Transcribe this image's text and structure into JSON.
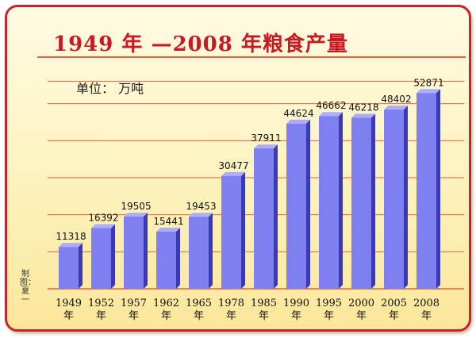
{
  "title": "1949 年 —2008 年粮食产量",
  "unit_label": "单位：  万吨",
  "credit": "制图：夏一",
  "colors": {
    "frame_border": "#c9232b",
    "title": "#c81a24",
    "gridline": "#e0653a",
    "bar_front": "#7f7ff2",
    "bar_side": "#3a3ab4",
    "bar_top": "#aeaef8"
  },
  "chart_data": {
    "type": "bar",
    "title": "1949 年 —2008 年粮食产量",
    "ylabel": "单位：  万吨",
    "year_suffix": "年",
    "categories": [
      "1949",
      "1952",
      "1957",
      "1962",
      "1965",
      "1978",
      "1985",
      "1990",
      "1995",
      "2000",
      "2005",
      "2008"
    ],
    "values": [
      11318,
      16392,
      19505,
      15441,
      19453,
      30477,
      37911,
      44624,
      46662,
      46218,
      48402,
      52871
    ],
    "ylim": [
      0,
      55000
    ],
    "grid": true,
    "legend": "none"
  }
}
